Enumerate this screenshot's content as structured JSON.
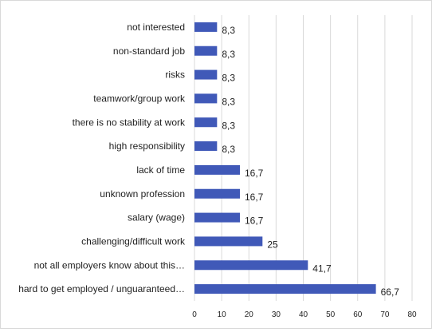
{
  "chart_data": {
    "type": "bar",
    "orientation": "horizontal",
    "categories": [
      "not interested",
      "non-standard job",
      "risks",
      "teamwork/group work",
      "there is no stability at work",
      "high responsibility",
      "lack of time",
      "unknown profession",
      "salary (wage)",
      "challenging/difficult work",
      "not all employers know about this…",
      "hard to get employed / unguaranteed…"
    ],
    "values": [
      8.3,
      8.3,
      8.3,
      8.3,
      8.3,
      8.3,
      16.7,
      16.7,
      16.7,
      25,
      41.7,
      66.7
    ],
    "data_labels": [
      "8,3",
      "8,3",
      "8,3",
      "8,3",
      "8,3",
      "8,3",
      "16,7",
      "16,7",
      "16,7",
      "25",
      "41,7",
      "66,7"
    ],
    "xlim": [
      0,
      80
    ],
    "x_ticks": [
      0,
      10,
      20,
      30,
      40,
      50,
      60,
      70,
      80
    ],
    "grid": "vertical",
    "legend": "none",
    "bar_color": "#4059b8",
    "grid_color": "#d9d9d9",
    "title": "",
    "xlabel": "",
    "ylabel": ""
  }
}
